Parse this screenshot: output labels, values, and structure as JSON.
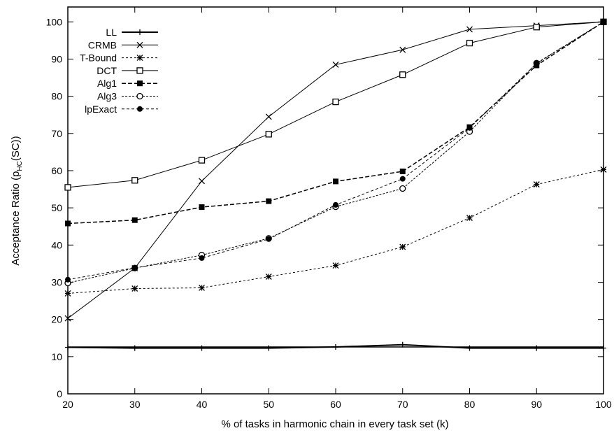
{
  "chart_data": {
    "type": "line",
    "xlabel": "% of tasks in harmonic chain in every task set (k)",
    "ylabel": "Acceptance Ratio (p_HC(SC))",
    "ylabel_main": "Acceptance Ratio (p",
    "ylabel_sub": "HC",
    "ylabel_tail": "(SC))",
    "x": [
      20,
      30,
      40,
      50,
      60,
      70,
      80,
      90,
      100
    ],
    "xlim": [
      20,
      100
    ],
    "ylim": [
      0,
      104
    ],
    "x_ticks": [
      "20",
      "30",
      "40",
      "50",
      "60",
      "70",
      "80",
      "90",
      "100"
    ],
    "y_ticks": [
      {
        "value": 0,
        "label": "0"
      },
      {
        "value": 10,
        "label": "10"
      },
      {
        "value": 20,
        "label": "20"
      },
      {
        "value": 30,
        "label": "30"
      },
      {
        "value": 40,
        "label": "40"
      },
      {
        "value": 50,
        "label": "50"
      },
      {
        "value": 60,
        "label": "60"
      },
      {
        "value": 70,
        "label": "70"
      },
      {
        "value": 80,
        "label": "80"
      },
      {
        "value": 90,
        "label": "90"
      },
      {
        "value": 100,
        "label": "100"
      }
    ],
    "grid": false,
    "legend_position": "top-left",
    "series": [
      {
        "name": "LL",
        "marker": "plus",
        "dash": "",
        "stroke_width": 2,
        "values": [
          12.5,
          12.3,
          12.3,
          12.3,
          12.6,
          13.2,
          12.3,
          12.3,
          12.3
        ]
      },
      {
        "name": "CRMB",
        "marker": "x",
        "dash": "",
        "stroke_width": 1,
        "values": [
          20.3,
          33.8,
          57.2,
          74.5,
          88.5,
          92.5,
          98,
          99,
          100
        ]
      },
      {
        "name": "T-Bound",
        "marker": "star",
        "dash": "3,3",
        "stroke_width": 1,
        "values": [
          27,
          28.3,
          28.5,
          31.5,
          34.5,
          39.5,
          47.3,
          56.3,
          60.3
        ]
      },
      {
        "name": "DCT",
        "marker": "open-square",
        "dash": "",
        "stroke_width": 1,
        "values": [
          55.5,
          57.4,
          62.8,
          69.8,
          78.5,
          85.8,
          94.3,
          98.6,
          100
        ]
      },
      {
        "name": "Alg1",
        "marker": "filled-square",
        "dash": "6,3",
        "stroke_width": 1.5,
        "values": [
          45.8,
          46.7,
          50.2,
          51.8,
          57.1,
          59.8,
          71.7,
          88.3,
          100
        ]
      },
      {
        "name": "Alg3",
        "marker": "open-circle",
        "dash": "3,2",
        "stroke_width": 1,
        "values": [
          29.8,
          33.8,
          37.3,
          41.8,
          50.3,
          55.2,
          70.5,
          88.9,
          100
        ]
      },
      {
        "name": "lpExact",
        "marker": "filled-circle",
        "dash": "4,3",
        "stroke_width": 1,
        "values": [
          30.7,
          33.9,
          36.5,
          41.6,
          50.8,
          57.8,
          71.5,
          88.8,
          100
        ]
      }
    ]
  }
}
